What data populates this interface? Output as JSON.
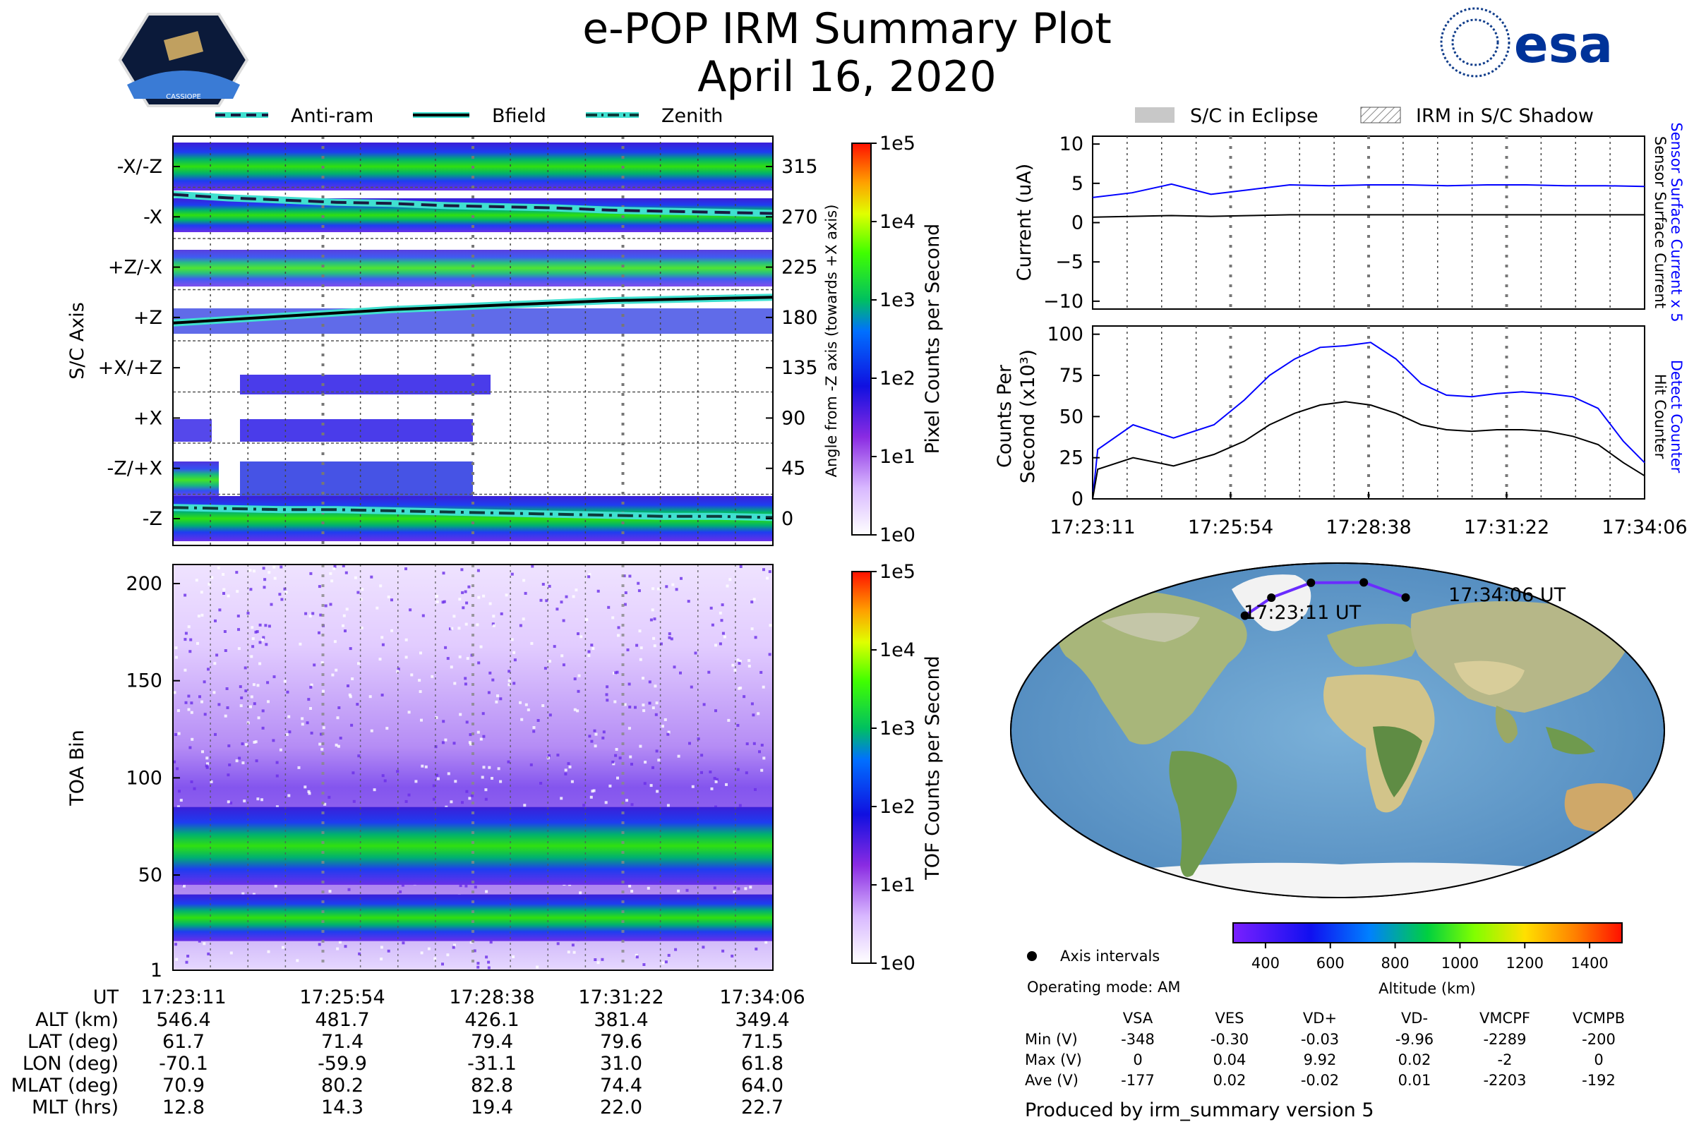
{
  "header": {
    "title": "e-POP IRM Summary Plot",
    "date": "April 16, 2020",
    "logo_left": "CASSIOPE",
    "logo_right": "esa"
  },
  "legend_top_left": [
    "Anti-ram",
    "Bfield",
    "Zenith"
  ],
  "legend_top_right": [
    "S/C in Eclipse",
    "IRM in S/C Shadow"
  ],
  "colors": {
    "anti_ram": "#1a1a40",
    "bfield": "#000000",
    "zenith": "#0d3b3b",
    "halo": "#40e0d0",
    "sensor_line": "#0000ff",
    "detect_line": "#0000ff",
    "black_line": "#000000",
    "orbit": "#6a2cff"
  },
  "chart_data": [
    {
      "type": "heatmap",
      "name": "S/C Axis pixel counts",
      "ylabel": "S/C Axis",
      "yticklabels": [
        "-X/-Z",
        "-X",
        "+Z/-X",
        "+Z",
        "+X/+Z",
        "+X",
        "-Z/+X",
        "-Z"
      ],
      "right_ylabel": "Angle from -Z axis (towards +X axis)",
      "right_ticks": [
        "315",
        "270",
        "225",
        "180",
        "135",
        "90",
        "45",
        "0"
      ],
      "colorbar_label": "Pixel Counts per Second",
      "colorbar_ticks": [
        "1e5",
        "1e4",
        "1e3",
        "1e2",
        "1e1",
        "1e0"
      ],
      "series": [
        {
          "name": "Anti-ram",
          "values_deg": [
            290,
            287,
            285,
            283,
            282,
            280,
            279,
            278,
            276,
            275,
            274,
            273
          ]
        },
        {
          "name": "Bfield",
          "values_deg": [
            175,
            178,
            181,
            184,
            187,
            189,
            191,
            193,
            195,
            196,
            197,
            198
          ]
        },
        {
          "name": "Zenith",
          "values_deg": [
            10,
            9,
            8,
            8,
            7,
            6,
            5,
            4,
            3,
            2,
            2,
            1
          ]
        }
      ]
    },
    {
      "type": "heatmap",
      "name": "TOA bin counts",
      "ylabel": "TOA Bin",
      "yticks": [
        "200",
        "150",
        "100",
        "50",
        "1"
      ],
      "colorbar_label": "TOF Counts per Second",
      "colorbar_ticks": [
        "1e5",
        "1e4",
        "1e3",
        "1e2",
        "1e1",
        "1e0"
      ],
      "bands": [
        {
          "center_bin": 65,
          "width_bins": 20
        },
        {
          "center_bin": 28,
          "width_bins": 12
        }
      ]
    },
    {
      "type": "line",
      "name": "Current",
      "ylabel": "Current (uA)",
      "ylim": [
        -11,
        11
      ],
      "yticks": [
        "10",
        "5",
        "0",
        "−5",
        "−10"
      ],
      "right_labels": [
        "Sensor Surface Current x 5",
        "Sensor Surface Current"
      ],
      "series": [
        {
          "name": "Sensor Surface Current x 5",
          "values": [
            3.2,
            3.8,
            4.9,
            3.6,
            4.2,
            4.8,
            4.7,
            4.8,
            4.8,
            4.7,
            4.8,
            4.8,
            4.7,
            4.7,
            4.6
          ]
        },
        {
          "name": "Sensor Surface Current",
          "values": [
            0.7,
            0.8,
            0.9,
            0.8,
            0.9,
            1.0,
            1.0,
            1.0,
            1.0,
            1.0,
            1.0,
            1.0,
            1.0,
            1.0,
            1.0
          ]
        }
      ]
    },
    {
      "type": "line",
      "name": "Counts",
      "ylabel": "Counts Per Second (x10³)",
      "ylim": [
        0,
        105
      ],
      "yticks": [
        "100",
        "75",
        "50",
        "25",
        "0"
      ],
      "right_labels": [
        "Detect Counter",
        "Hit Counter"
      ],
      "xticklabels": [
        "17:23:11",
        "17:25:54",
        "17:28:38",
        "17:31:22",
        "17:34:06"
      ],
      "x": [
        0,
        0.1,
        0.8,
        1.6,
        2.4,
        3.0,
        3.5,
        4.0,
        4.5,
        5.0,
        5.5,
        6.0,
        6.5,
        7.0,
        7.5,
        8.0,
        8.5,
        9.0,
        9.5,
        10.0,
        10.5,
        10.92
      ],
      "series": [
        {
          "name": "Detect Counter",
          "values": [
            0,
            30,
            45,
            37,
            45,
            60,
            75,
            85,
            92,
            93,
            95,
            85,
            70,
            63,
            62,
            64,
            65,
            64,
            62,
            55,
            35,
            22
          ]
        },
        {
          "name": "Hit Counter",
          "values": [
            0,
            18,
            25,
            20,
            27,
            35,
            45,
            52,
            57,
            59,
            57,
            52,
            45,
            42,
            41,
            42,
            42,
            41,
            38,
            33,
            22,
            14
          ]
        }
      ]
    }
  ],
  "map": {
    "start_label": "17:23:11 UT",
    "end_label": "17:34:06 UT",
    "track": [
      [
        -70.1,
        61.7
      ],
      [
        -59.9,
        71.4
      ],
      [
        -31.1,
        79.4
      ],
      [
        31.0,
        79.6
      ],
      [
        61.8,
        71.5
      ]
    ],
    "legend": "Axis intervals",
    "operating_mode": "Operating mode: AM",
    "altitude_label": "Altitude (km)",
    "altitude_ticks": [
      "400",
      "600",
      "800",
      "1000",
      "1200",
      "1400"
    ]
  },
  "info_table": {
    "ut_label": "UT",
    "times": [
      "17:23:11",
      "17:25:54",
      "17:28:38",
      "17:31:22",
      "17:34:06"
    ],
    "rows": [
      {
        "label": "ALT (km)",
        "values": [
          "546.4",
          "481.7",
          "426.1",
          "381.4",
          "349.4"
        ]
      },
      {
        "label": "LAT (deg)",
        "values": [
          "61.7",
          "71.4",
          "79.4",
          "79.6",
          "71.5"
        ]
      },
      {
        "label": "LON (deg)",
        "values": [
          "-70.1",
          "-59.9",
          "-31.1",
          "31.0",
          "61.8"
        ]
      },
      {
        "label": "MLAT (deg)",
        "values": [
          "70.9",
          "80.2",
          "82.8",
          "74.4",
          "64.0"
        ]
      },
      {
        "label": "MLT (hrs)",
        "values": [
          "12.8",
          "14.3",
          "19.4",
          "22.0",
          "22.7"
        ]
      }
    ]
  },
  "voltage_table": {
    "headers": [
      "VSA",
      "VES",
      "VD+",
      "VD-",
      "VMCPF",
      "VCMPB"
    ],
    "rows": [
      {
        "label": "Min (V)",
        "values": [
          "-348",
          "-0.30",
          "-0.03",
          "-9.96",
          "-2289",
          "-200"
        ]
      },
      {
        "label": "Max (V)",
        "values": [
          "0",
          "0.04",
          "9.92",
          "0.02",
          "-2",
          "0"
        ]
      },
      {
        "label": "Ave (V)",
        "values": [
          "-177",
          "0.02",
          "-0.02",
          "0.01",
          "-2203",
          "-192"
        ]
      }
    ]
  },
  "footer": "Produced by irm_summary version 5"
}
